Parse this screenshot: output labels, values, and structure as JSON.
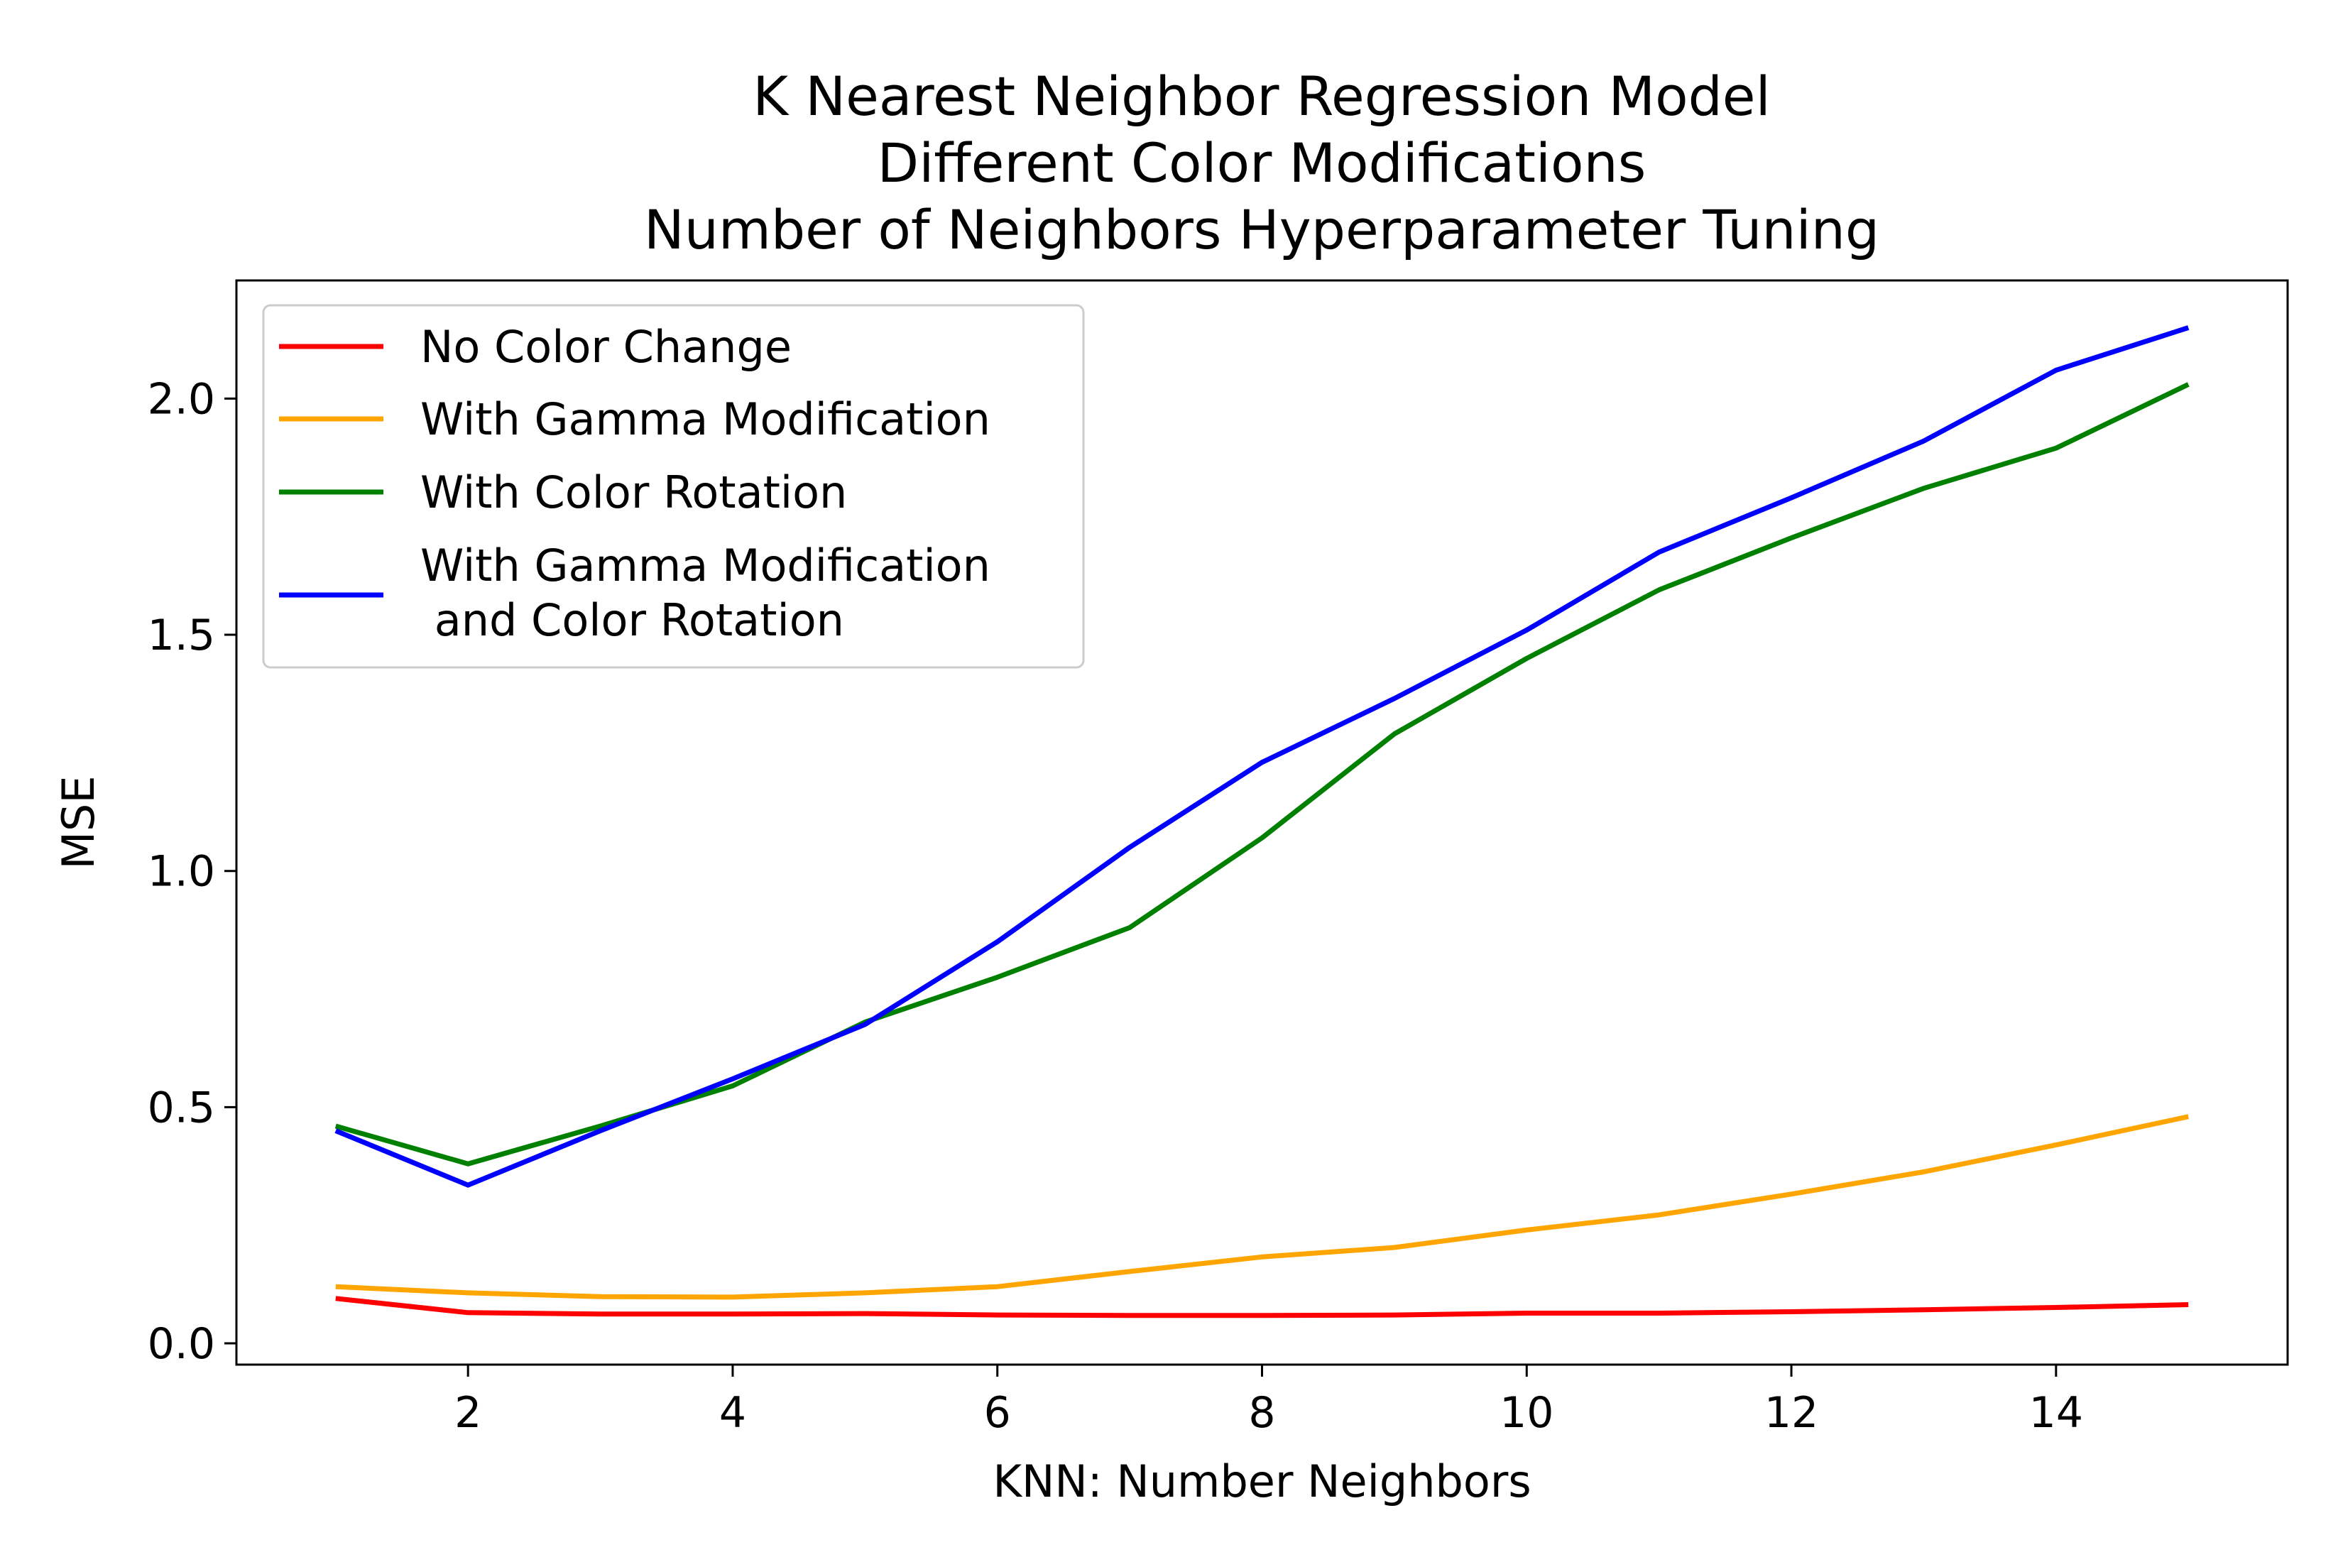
{
  "chart_data": {
    "type": "line",
    "title": [
      "K Nearest Neighbor Regression Model",
      "Different Color Modifications",
      "Number of Neighbors Hyperparameter Tuning"
    ],
    "xlabel": "KNN: Number Neighbors",
    "ylabel": "MSE",
    "x": [
      1,
      2,
      3,
      4,
      5,
      6,
      7,
      8,
      9,
      10,
      11,
      12,
      13,
      14,
      15
    ],
    "xlim": [
      0.25,
      15.75
    ],
    "ylim": [
      -0.045,
      2.25
    ],
    "xticks": [
      2,
      4,
      6,
      8,
      10,
      12,
      14
    ],
    "xtick_labels": [
      "2",
      "4",
      "6",
      "8",
      "10",
      "12",
      "14"
    ],
    "yticks": [
      0.0,
      0.5,
      1.0,
      1.5,
      2.0
    ],
    "ytick_labels": [
      "0.0",
      "0.5",
      "1.0",
      "1.5",
      "2.0"
    ],
    "grid": false,
    "legend_position": "top-left",
    "series": [
      {
        "name": "No Color Change",
        "color": "#ff0000",
        "values": [
          0.095,
          0.065,
          0.062,
          0.062,
          0.063,
          0.06,
          0.059,
          0.059,
          0.06,
          0.064,
          0.064,
          0.067,
          0.071,
          0.076,
          0.082
        ]
      },
      {
        "name": "With Gamma Modification",
        "color": "#ffa500",
        "values": [
          0.12,
          0.107,
          0.099,
          0.098,
          0.107,
          0.12,
          0.152,
          0.183,
          0.203,
          0.24,
          0.272,
          0.316,
          0.363,
          0.42,
          0.48
        ]
      },
      {
        "name": "With Color Rotation",
        "color": "#008000",
        "values": [
          0.46,
          0.38,
          0.46,
          0.545,
          0.68,
          0.775,
          0.88,
          1.07,
          1.29,
          1.45,
          1.595,
          1.705,
          1.81,
          1.895,
          2.03
        ]
      },
      {
        "name": "With Gamma Modification\n and Color Rotation",
        "color": "#0000ff",
        "values": [
          0.45,
          0.335,
          0.45,
          0.56,
          0.675,
          0.85,
          1.05,
          1.23,
          1.365,
          1.51,
          1.675,
          1.79,
          1.91,
          2.06,
          2.15
        ]
      }
    ]
  }
}
